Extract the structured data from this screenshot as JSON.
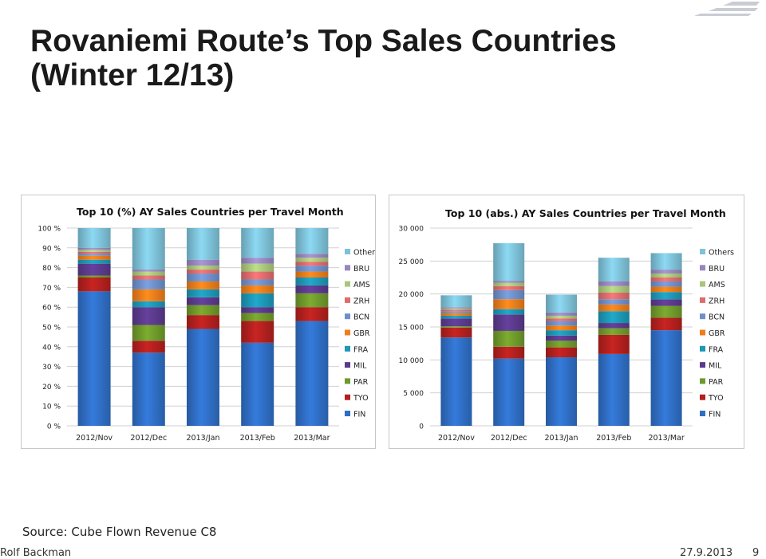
{
  "slide": {
    "title_line1": "Rovaniemi Route’s Top Sales Countries",
    "title_line2": "(Winter 12/13)",
    "source": "Source: Cube Flown Revenue C8",
    "author": "Rolf Backman",
    "date": "27.9.2013",
    "page": "9"
  },
  "colors": {
    "FIN": "#2f6ec4",
    "TYO": "#b3201e",
    "PAR": "#6f9a2b",
    "MIL": "#5b3a8c",
    "FRA": "#1d97b5",
    "GBR": "#ee7d1b",
    "BCN": "#6f8fc9",
    "ZRH": "#de6c6c",
    "AMS": "#a9c77b",
    "BRU": "#9787be",
    "Others": "#7ec2d9"
  },
  "chart_data": [
    {
      "type": "bar",
      "stacked": true,
      "title": "Top 10 (%) AY Sales Countries per Travel Month",
      "categories": [
        "2012/Nov",
        "2012/Dec",
        "2013/Jan",
        "2013/Feb",
        "2013/Mar"
      ],
      "ylim": [
        0,
        100
      ],
      "yticks": [
        0,
        10,
        20,
        30,
        40,
        50,
        60,
        70,
        80,
        90,
        100
      ],
      "ytick_labels": [
        "0 %",
        "10 %",
        "20 %",
        "30 %",
        "40 %",
        "50 %",
        "60 %",
        "70 %",
        "80 %",
        "90 %",
        "100 %"
      ],
      "grid": true,
      "legend": "right",
      "series": [
        {
          "name": "FIN",
          "values": [
            68,
            37,
            49,
            42,
            53
          ]
        },
        {
          "name": "TYO",
          "values": [
            7,
            6,
            7,
            11,
            7
          ]
        },
        {
          "name": "PAR",
          "values": [
            1,
            8,
            5,
            4,
            7
          ]
        },
        {
          "name": "MIL",
          "values": [
            6,
            9,
            4,
            3,
            4
          ]
        },
        {
          "name": "FRA",
          "values": [
            2,
            3,
            4,
            7,
            4
          ]
        },
        {
          "name": "GBR",
          "values": [
            2,
            6,
            4,
            4,
            3
          ]
        },
        {
          "name": "BCN",
          "values": [
            1,
            5,
            4,
            3,
            3
          ]
        },
        {
          "name": "ZRH",
          "values": [
            1,
            2,
            2,
            4,
            2
          ]
        },
        {
          "name": "AMS",
          "values": [
            1,
            2,
            2,
            4,
            2
          ]
        },
        {
          "name": "BRU",
          "values": [
            1,
            1,
            3,
            3,
            2
          ]
        },
        {
          "name": "Others",
          "values": [
            10,
            21,
            16,
            15,
            13
          ]
        }
      ]
    },
    {
      "type": "bar",
      "stacked": true,
      "title": "Top 10 (abs.) AY Sales Countries per Travel Month",
      "categories": [
        "2012/Nov",
        "2012/Dec",
        "2013/Jan",
        "2013/Feb",
        "2013/Mar"
      ],
      "ylim": [
        0,
        30000
      ],
      "yticks": [
        0,
        5000,
        10000,
        15000,
        20000,
        25000,
        30000
      ],
      "ytick_labels": [
        "0",
        "5 000",
        "10 000",
        "15 000",
        "20 000",
        "25 000",
        "30 000"
      ],
      "grid": true,
      "legend": "right",
      "series": [
        {
          "name": "FIN",
          "values": [
            13400,
            10200,
            10400,
            10900,
            14500
          ]
        },
        {
          "name": "TYO",
          "values": [
            1500,
            1800,
            1500,
            2900,
            1900
          ]
        },
        {
          "name": "PAR",
          "values": [
            200,
            2400,
            1000,
            1000,
            1800
          ]
        },
        {
          "name": "MIL",
          "values": [
            1200,
            2500,
            800,
            800,
            1000
          ]
        },
        {
          "name": "FRA",
          "values": [
            400,
            800,
            800,
            1800,
            1100
          ]
        },
        {
          "name": "GBR",
          "values": [
            400,
            1500,
            700,
            1000,
            800
          ]
        },
        {
          "name": "BCN",
          "values": [
            300,
            1400,
            700,
            800,
            800
          ]
        },
        {
          "name": "ZRH",
          "values": [
            200,
            600,
            400,
            1000,
            600
          ]
        },
        {
          "name": "AMS",
          "values": [
            200,
            500,
            400,
            1000,
            600
          ]
        },
        {
          "name": "BRU",
          "values": [
            200,
            300,
            500,
            700,
            600
          ]
        },
        {
          "name": "Others",
          "values": [
            1800,
            5700,
            2700,
            3600,
            2500
          ]
        }
      ]
    }
  ]
}
